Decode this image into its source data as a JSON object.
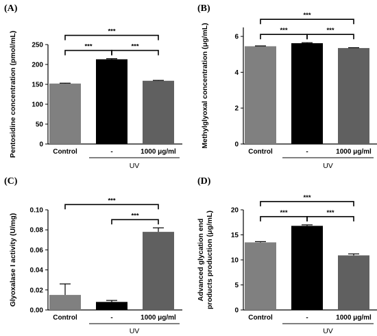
{
  "chart_data": [
    {
      "panel": "(A)",
      "type": "bar",
      "ylabel": "Pentosidine concentration (pmol/mL)",
      "categories": [
        "Control",
        "-",
        "1000 μg/ml"
      ],
      "group_label": "UV",
      "values": [
        152,
        213,
        159
      ],
      "errors": [
        1,
        1.5,
        1
      ],
      "colors": [
        "#808080",
        "#000000",
        "#606060"
      ],
      "ylim": [
        0,
        250
      ],
      "yticks": [
        0,
        50,
        100,
        150,
        200,
        250
      ],
      "ytick_labels": [
        "0",
        "50",
        "100",
        "150",
        "200",
        "250"
      ],
      "significance": [
        {
          "from": 0,
          "to": 2,
          "label": "***"
        },
        {
          "from": 0,
          "to": 1,
          "label": "***"
        },
        {
          "from": 1,
          "to": 2,
          "label": "***"
        }
      ]
    },
    {
      "panel": "(B)",
      "type": "bar",
      "ylabel": "Methylglyoxal concentration (μg/mL)",
      "categories": [
        "Control",
        "-",
        "1000 μg/ml"
      ],
      "group_label": "UV",
      "values": [
        5.45,
        5.62,
        5.35
      ],
      "errors": [
        0.02,
        0.03,
        0.02
      ],
      "colors": [
        "#808080",
        "#000000",
        "#606060"
      ],
      "ylim": [
        0,
        6.5
      ],
      "yticks": [
        0,
        2,
        4,
        6
      ],
      "ytick_labels": [
        "0",
        "2",
        "4",
        "6"
      ],
      "significance": [
        {
          "from": 0,
          "to": 2,
          "label": "***"
        },
        {
          "from": 0,
          "to": 1,
          "label": "***"
        },
        {
          "from": 1,
          "to": 2,
          "label": "***"
        }
      ]
    },
    {
      "panel": "(C)",
      "type": "bar",
      "ylabel": "Glyoxalase I activity (U/mg)",
      "categories": [
        "Control",
        "-",
        "1000 μg/ml"
      ],
      "group_label": "UV",
      "values": [
        0.015,
        0.008,
        0.078
      ],
      "errors": [
        0.011,
        0.0015,
        0.004
      ],
      "colors": [
        "#808080",
        "#000000",
        "#606060"
      ],
      "ylim": [
        0,
        0.1
      ],
      "yticks": [
        0,
        0.02,
        0.04,
        0.06,
        0.08,
        0.1
      ],
      "ytick_labels": [
        "0.00",
        "0.02",
        "0.04",
        "0.06",
        "0.08",
        "0.10"
      ],
      "significance": [
        {
          "from": 0,
          "to": 2,
          "label": "***"
        },
        {
          "from": 1,
          "to": 2,
          "label": "***"
        }
      ]
    },
    {
      "panel": "(D)",
      "type": "bar",
      "ylabel": "Advanced glycation end products production (μg/mL)",
      "ylabel_lines": [
        "Advanced glycation end",
        "products production (μg/mL)"
      ],
      "categories": [
        "Control",
        "-",
        "1000 μg/ml"
      ],
      "group_label": "UV",
      "values": [
        13.5,
        16.8,
        10.9
      ],
      "errors": [
        0.15,
        0.2,
        0.3
      ],
      "colors": [
        "#808080",
        "#000000",
        "#606060"
      ],
      "ylim": [
        0,
        20
      ],
      "yticks": [
        0,
        5,
        10,
        15,
        20
      ],
      "ytick_labels": [
        "0",
        "5",
        "10",
        "15",
        "20"
      ],
      "significance": [
        {
          "from": 0,
          "to": 2,
          "label": "***"
        },
        {
          "from": 0,
          "to": 1,
          "label": "***"
        },
        {
          "from": 1,
          "to": 2,
          "label": "***"
        }
      ]
    }
  ]
}
